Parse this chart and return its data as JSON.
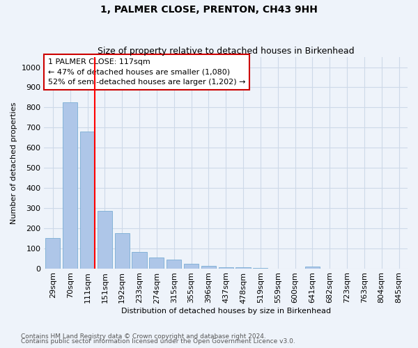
{
  "title": "1, PALMER CLOSE, PRENTON, CH43 9HH",
  "subtitle": "Size of property relative to detached houses in Birkenhead",
  "xlabel": "Distribution of detached houses by size in Birkenhead",
  "ylabel": "Number of detached properties",
  "footnote1": "Contains HM Land Registry data © Crown copyright and database right 2024.",
  "footnote2": "Contains public sector information licensed under the Open Government Licence v3.0.",
  "bar_labels": [
    "29sqm",
    "70sqm",
    "111sqm",
    "151sqm",
    "192sqm",
    "233sqm",
    "274sqm",
    "315sqm",
    "355sqm",
    "396sqm",
    "437sqm",
    "478sqm",
    "519sqm",
    "559sqm",
    "600sqm",
    "641sqm",
    "682sqm",
    "723sqm",
    "763sqm",
    "804sqm",
    "845sqm"
  ],
  "bar_values": [
    150,
    825,
    680,
    285,
    175,
    80,
    55,
    42,
    22,
    12,
    7,
    5,
    3,
    0,
    0,
    8,
    0,
    0,
    0,
    0,
    0
  ],
  "bar_color": "#aec6e8",
  "bar_edge_color": "#7aadd4",
  "red_line_index": 2,
  "ylim": [
    0,
    1050
  ],
  "yticks": [
    0,
    100,
    200,
    300,
    400,
    500,
    600,
    700,
    800,
    900,
    1000
  ],
  "annotation_text": "1 PALMER CLOSE: 117sqm\n← 47% of detached houses are smaller (1,080)\n52% of semi-detached houses are larger (1,202) →",
  "annotation_box_color": "#ffffff",
  "annotation_box_edge_color": "#cc0000",
  "grid_color": "#cdd9e8",
  "bg_color": "#eef3fa",
  "title_fontsize": 10,
  "subtitle_fontsize": 9,
  "ylabel_fontsize": 8,
  "xlabel_fontsize": 8,
  "tick_fontsize": 8,
  "annot_fontsize": 8,
  "footnote_fontsize": 6.5
}
